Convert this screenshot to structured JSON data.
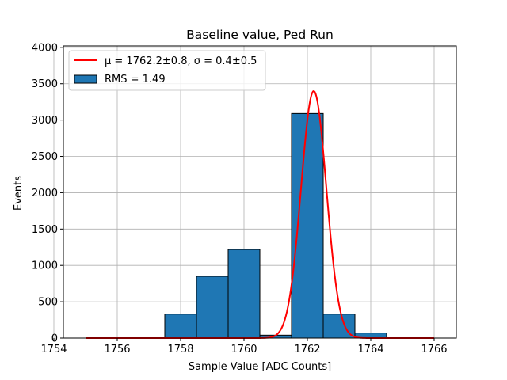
{
  "chart_data": {
    "type": "bar",
    "title": "Baseline value, Ped Run",
    "xlabel": "Sample Value [ADC Counts]",
    "ylabel": "Events",
    "xlim": [
      1754.3,
      1766.7
    ],
    "ylim": [
      0,
      4020
    ],
    "grid": true,
    "legend_position": "upper-left",
    "x_ticks": [
      1754,
      1756,
      1758,
      1760,
      1762,
      1764,
      1766
    ],
    "y_ticks": [
      0,
      500,
      1000,
      1500,
      2000,
      2500,
      3000,
      3500,
      4000
    ],
    "histogram": {
      "name": "RMS = 1.49",
      "color": "#1f77b4",
      "edgecolor": "#000000",
      "bin_edges": [
        1757.5,
        1758.5,
        1759.5,
        1760.5,
        1761.5,
        1762.5,
        1763.5,
        1764.5
      ],
      "counts": [
        330,
        850,
        1220,
        40,
        3090,
        330,
        70
      ]
    },
    "fit": {
      "type": "gaussian",
      "name_prefix": "μ = 1762.2±0.8, ",
      "name_suffix": "σ = 0.4±0.5",
      "color": "#ff0000",
      "mu": 1762.2,
      "sigma": 0.4,
      "amplitude": 3400,
      "x_range": [
        1755,
        1766
      ]
    }
  }
}
